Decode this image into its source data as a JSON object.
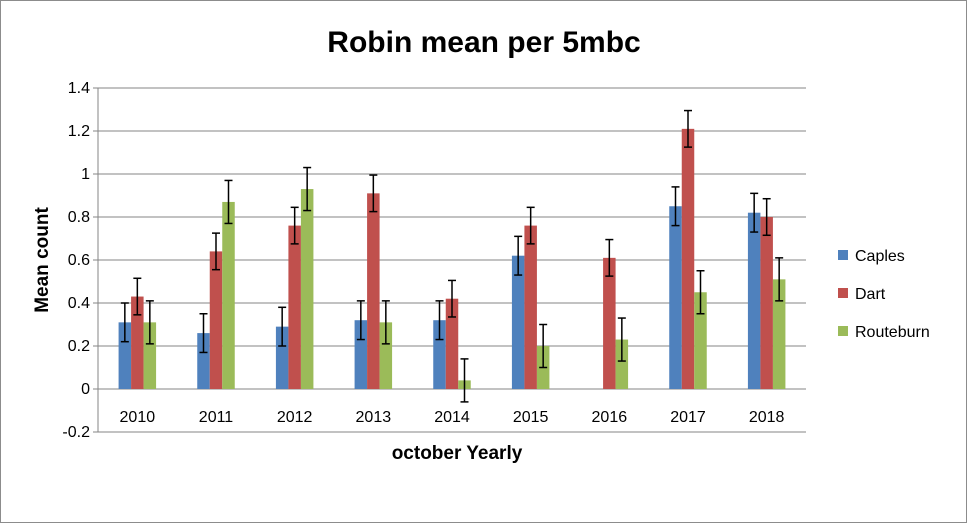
{
  "chart_data": {
    "type": "bar",
    "title": "Robin mean per 5mbc",
    "xlabel": "october Yearly",
    "ylabel": "Mean count",
    "ylim": [
      -0.2,
      1.4
    ],
    "yticks": [
      "-0.2",
      "0",
      "0.2",
      "0.4",
      "0.6",
      "0.8",
      "1",
      "1.2",
      "1.4"
    ],
    "categories": [
      "2010",
      "2011",
      "2012",
      "2013",
      "2014",
      "2015",
      "2016",
      "2017",
      "2018"
    ],
    "grid": true,
    "legend_position": "right",
    "series": [
      {
        "name": "Caples",
        "color": "#4f81bd",
        "values": [
          0.31,
          0.26,
          0.29,
          0.32,
          0.32,
          0.62,
          0.0,
          0.85,
          0.82
        ],
        "errors": [
          0.09,
          0.09,
          0.09,
          0.09,
          0.09,
          0.09,
          0.0,
          0.09,
          0.09
        ]
      },
      {
        "name": "Dart",
        "color": "#c0504d",
        "values": [
          0.43,
          0.64,
          0.76,
          0.91,
          0.42,
          0.76,
          0.61,
          1.21,
          0.8
        ],
        "errors": [
          0.085,
          0.085,
          0.085,
          0.085,
          0.085,
          0.085,
          0.085,
          0.085,
          0.085
        ]
      },
      {
        "name": "Routeburn",
        "color": "#9bbb59",
        "values": [
          0.31,
          0.87,
          0.93,
          0.31,
          0.04,
          0.2,
          0.23,
          0.45,
          0.51
        ],
        "errors": [
          0.1,
          0.1,
          0.1,
          0.1,
          0.1,
          0.1,
          0.1,
          0.1,
          0.1
        ]
      }
    ]
  }
}
